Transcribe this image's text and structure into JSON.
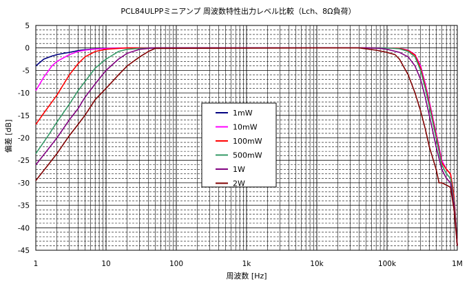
{
  "chart_data": {
    "type": "line",
    "title": "PCL84ULPPミニアンプ 周波数特性出力レベル比較（Lch、8Ω負荷）",
    "xlabel": "周波数 [Hz]",
    "ylabel": "偏差 [dB]",
    "x_scale": "log",
    "xlim": [
      1,
      1000000
    ],
    "ylim": [
      -45,
      5
    ],
    "x_tick_values": [
      1,
      10,
      100,
      1000,
      10000,
      100000,
      1000000
    ],
    "x_tick_labels": [
      "1",
      "10",
      "100",
      "1k",
      "10k",
      "100k",
      "1M"
    ],
    "y_tick_values": [
      5,
      0,
      -5,
      -10,
      -15,
      -20,
      -25,
      -30,
      -35,
      -40,
      -45
    ],
    "y_tick_labels": [
      "5",
      "0",
      "-5",
      "-10",
      "-15",
      "-20",
      "-25",
      "-30",
      "-35",
      "-40",
      "-45"
    ],
    "grid": true,
    "legend_position": "center-left",
    "series": [
      {
        "name": "1mW",
        "color": "#000080",
        "x": [
          1,
          1.3,
          1.7,
          2,
          2.5,
          3,
          4,
          5,
          7,
          10,
          20,
          50,
          10000,
          50000,
          100000,
          150000,
          200000,
          250000,
          300000,
          350000,
          400000,
          500000,
          600000,
          700000,
          800000,
          900000,
          1000000
        ],
        "y": [
          -4,
          -2.5,
          -1.8,
          -1.5,
          -1.2,
          -1,
          -0.6,
          -0.4,
          -0.2,
          -0.1,
          0,
          0,
          0,
          0,
          0,
          -0.1,
          -0.5,
          -1.5,
          -4,
          -8,
          -12,
          -19,
          -25,
          -27,
          -28,
          -33,
          -44
        ]
      },
      {
        "name": "10mW",
        "color": "#ff00ff",
        "x": [
          1,
          1.3,
          1.7,
          2,
          3,
          4,
          5,
          7,
          10,
          20,
          50,
          10000,
          50000,
          100000,
          150000,
          200000,
          250000,
          300000,
          350000,
          400000,
          500000,
          600000,
          700000,
          800000,
          900000,
          1000000
        ],
        "y": [
          -9.5,
          -6.5,
          -4,
          -3,
          -1.5,
          -0.8,
          -0.5,
          -0.25,
          -0.1,
          0,
          0,
          0,
          0,
          0,
          -0.1,
          -0.5,
          -1.5,
          -4,
          -8,
          -12,
          -19,
          -25,
          -27,
          -28,
          -33,
          -44
        ]
      },
      {
        "name": "100mW",
        "color": "#ff0000",
        "x": [
          1,
          1.3,
          1.7,
          2,
          2.5,
          3,
          4,
          5,
          7,
          10,
          15,
          20,
          30,
          50,
          10000,
          50000,
          100000,
          150000,
          200000,
          250000,
          300000,
          350000,
          400000,
          500000,
          600000,
          700000,
          800000,
          900000,
          1000000
        ],
        "y": [
          -17,
          -14.5,
          -12,
          -10.5,
          -8,
          -6,
          -3.5,
          -2,
          -0.8,
          -0.3,
          -0.1,
          0,
          0,
          0,
          0,
          0,
          0,
          -0.1,
          -0.6,
          -1.6,
          -4.5,
          -8.5,
          -12.5,
          -19.5,
          -25.5,
          -27,
          -28,
          -33,
          -44
        ]
      },
      {
        "name": "500mW",
        "color": "#339966",
        "x": [
          1,
          1.5,
          2,
          3,
          4,
          5,
          7,
          10,
          15,
          20,
          30,
          50,
          10000,
          50000,
          100000,
          150000,
          200000,
          250000,
          300000,
          350000,
          400000,
          500000,
          600000,
          700000,
          800000,
          900000,
          1000000
        ],
        "y": [
          -23.5,
          -19.5,
          -16.5,
          -12.5,
          -9.5,
          -7.5,
          -4.5,
          -2.5,
          -0.8,
          -0.3,
          -0.1,
          0,
          0,
          0,
          0,
          -0.2,
          -0.8,
          -2,
          -5,
          -9,
          -13,
          -20,
          -26,
          -28,
          -29,
          -34,
          -44
        ]
      },
      {
        "name": "1W",
        "color": "#800080",
        "x": [
          1,
          1.5,
          2,
          3,
          4,
          5,
          7,
          10,
          15,
          20,
          30,
          40,
          50,
          10000,
          50000,
          80000,
          100000,
          150000,
          200000,
          250000,
          300000,
          350000,
          400000,
          500000,
          600000,
          700000,
          800000,
          900000,
          1000000
        ],
        "y": [
          -26,
          -22.5,
          -20,
          -16,
          -13.5,
          -11,
          -8,
          -5,
          -2.5,
          -1.2,
          -0.3,
          -0.1,
          0,
          0,
          0,
          -0.1,
          -0.3,
          -1,
          -2,
          -4,
          -7,
          -11,
          -15,
          -22,
          -27,
          -29,
          -30,
          -35,
          -44
        ]
      },
      {
        "name": "2W",
        "color": "#800000",
        "x": [
          1,
          1.5,
          2,
          3,
          4,
          5,
          7,
          10,
          15,
          20,
          30,
          40,
          50,
          10000,
          40000,
          70000,
          100000,
          130000,
          150000,
          200000,
          250000,
          300000,
          350000,
          400000,
          500000,
          550000,
          600000,
          700000,
          800000,
          900000,
          1000000
        ],
        "y": [
          -29.5,
          -26,
          -23.5,
          -19.5,
          -17,
          -15,
          -11.5,
          -9,
          -6,
          -4,
          -2,
          -0.8,
          -0.1,
          0,
          0,
          -0.5,
          -1,
          -1.5,
          -2.5,
          -6,
          -10,
          -14,
          -18,
          -22,
          -27,
          -30,
          -30,
          -30.5,
          -31,
          -36,
          -44
        ]
      }
    ]
  }
}
